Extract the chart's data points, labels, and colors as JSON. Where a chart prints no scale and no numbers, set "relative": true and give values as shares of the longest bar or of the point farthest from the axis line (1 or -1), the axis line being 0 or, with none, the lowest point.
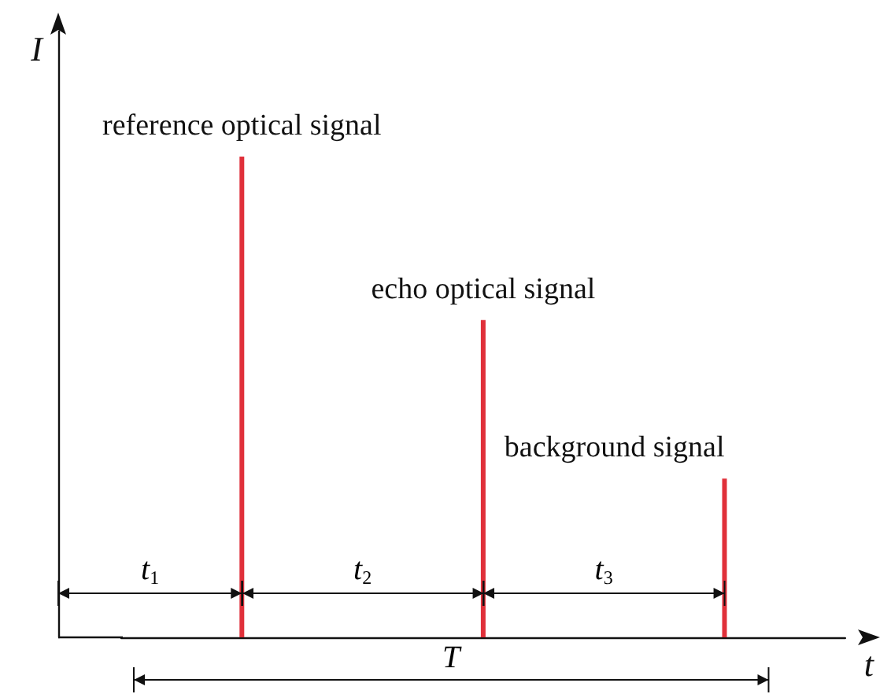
{
  "chart_data": {
    "type": "bar",
    "relative": true,
    "xlabel": "t",
    "ylabel": "I",
    "categories": [
      null,
      null,
      null
    ],
    "values": [
      1,
      0.66,
      0.33
    ],
    "color": "#e0303a",
    "annotations": [
      "reference optical signal",
      "echo optical signal",
      "background signal",
      "t$_{1}$",
      "t$_{2}$",
      "t$_{3}$",
      "T"
    ],
    "grid": false
  }
}
